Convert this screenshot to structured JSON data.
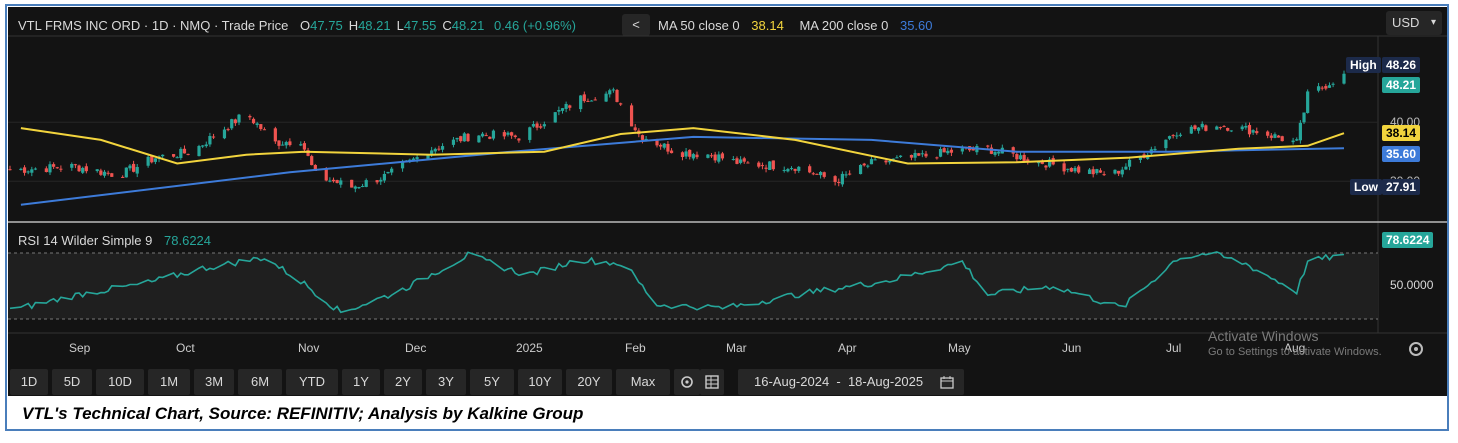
{
  "header": {
    "title": "VTL FRMS INC ORD · 1D · NMQ · Trade Price",
    "ohlc": [
      {
        "k": "O",
        "v": "47.75"
      },
      {
        "k": "H",
        "v": "48.21"
      },
      {
        "k": "L",
        "v": "47.55"
      },
      {
        "k": "C",
        "v": "48.21"
      }
    ],
    "change": "0.46 (+0.96%)",
    "ma50_label": "MA 50 close 0",
    "ma50_value": "38.14",
    "ma200_label": "MA 200 close 0",
    "ma200_value": "35.60",
    "currency": "USD",
    "collapse_glyph": "<"
  },
  "price_axis": {
    "ticks": [
      {
        "label": "40.00",
        "v": 40
      },
      {
        "label": "30.00",
        "v": 30
      }
    ],
    "tags": {
      "high_label": "High",
      "high_value": "48.26",
      "last": "48.21",
      "ma50": "38.14",
      "ma200": "35.60",
      "low_label": "Low",
      "low_value": "27.91"
    }
  },
  "rsi": {
    "label": "RSI 14 Wilder Simple 9",
    "value": "78.6224",
    "mid_tick": "50.0000"
  },
  "time_axis": {
    "labels": [
      "Sep",
      "Oct",
      "Nov",
      "Dec",
      "2025",
      "Feb",
      "Mar",
      "Apr",
      "May",
      "Jun",
      "Jul",
      "Aug"
    ]
  },
  "toolbar": {
    "ranges": [
      "1D",
      "5D",
      "10D",
      "1M",
      "3M",
      "6M",
      "YTD",
      "1Y",
      "2Y",
      "3Y",
      "5Y",
      "10Y",
      "20Y",
      "Max"
    ],
    "date_range": "16-Aug-2024  -  18-Aug-2025",
    "gear_icon": "gear-icon",
    "table_icon": "table-icon",
    "calendar_icon": "calendar-icon",
    "settings_icon": "settings-icon"
  },
  "watermark": {
    "line1": "Activate Windows",
    "line2": "Go to Settings to activate Windows."
  },
  "caption": "VTL's Technical Chart, Source: REFINITIV; Analysis by Kalkine Group",
  "colors": {
    "up": "#26a69a",
    "down": "#ef5350",
    "ma50": "#f2d43d",
    "ma200": "#3d7bd9",
    "rsi": "#26a69a",
    "frame": "#4a7ebb"
  },
  "chart_data": {
    "type": "candlestick",
    "title": "VTL FRMS INC ORD",
    "x_range": [
      "2024-08-16",
      "2025-08-18"
    ],
    "y_range": [
      27.91,
      48.26
    ],
    "price_close_path": [
      {
        "d": "2024-08-19",
        "c": 32.0
      },
      {
        "d": "2024-09-03",
        "c": 32.5
      },
      {
        "d": "2024-09-15",
        "c": 31.0
      },
      {
        "d": "2024-09-25",
        "c": 34.0
      },
      {
        "d": "2024-10-05",
        "c": 35.0
      },
      {
        "d": "2024-10-14",
        "c": 39.0
      },
      {
        "d": "2024-10-20",
        "c": 41.5
      },
      {
        "d": "2024-10-28",
        "c": 36.5
      },
      {
        "d": "2024-11-04",
        "c": 37.0
      },
      {
        "d": "2024-11-08",
        "c": 31.0
      },
      {
        "d": "2024-11-18",
        "c": 29.0
      },
      {
        "d": "2024-11-28",
        "c": 31.0
      },
      {
        "d": "2024-12-10",
        "c": 35.5
      },
      {
        "d": "2024-12-22",
        "c": 38.0
      },
      {
        "d": "2025-01-03",
        "c": 37.5
      },
      {
        "d": "2025-01-12",
        "c": 41.0
      },
      {
        "d": "2025-01-20",
        "c": 44.0
      },
      {
        "d": "2025-01-29",
        "c": 45.0
      },
      {
        "d": "2025-02-05",
        "c": 38.0
      },
      {
        "d": "2025-02-15",
        "c": 35.0
      },
      {
        "d": "2025-02-25",
        "c": 34.5
      },
      {
        "d": "2025-03-05",
        "c": 33.0
      },
      {
        "d": "2025-03-20",
        "c": 32.5
      },
      {
        "d": "2025-03-31",
        "c": 30.0
      },
      {
        "d": "2025-04-10",
        "c": 33.0
      },
      {
        "d": "2025-04-22",
        "c": 34.0
      },
      {
        "d": "2025-05-02",
        "c": 35.0
      },
      {
        "d": "2025-05-12",
        "c": 35.5
      },
      {
        "d": "2025-05-25",
        "c": 33.5
      },
      {
        "d": "2025-06-05",
        "c": 32.0
      },
      {
        "d": "2025-06-15",
        "c": 31.0
      },
      {
        "d": "2025-06-25",
        "c": 35.0
      },
      {
        "d": "2025-07-03",
        "c": 38.5
      },
      {
        "d": "2025-07-15",
        "c": 39.5
      },
      {
        "d": "2025-07-25",
        "c": 38.5
      },
      {
        "d": "2025-08-05",
        "c": 36.5
      },
      {
        "d": "2025-08-08",
        "c": 44.5
      },
      {
        "d": "2025-08-18",
        "c": 48.21
      }
    ],
    "ma50_path": [
      {
        "d": "2024-08-19",
        "v": 39.0
      },
      {
        "d": "2024-09-10",
        "v": 37.0
      },
      {
        "d": "2024-10-01",
        "v": 33.0
      },
      {
        "d": "2024-10-20",
        "v": 34.5
      },
      {
        "d": "2024-11-05",
        "v": 35.0
      },
      {
        "d": "2024-12-10",
        "v": 34.5
      },
      {
        "d": "2025-01-10",
        "v": 35.0
      },
      {
        "d": "2025-01-31",
        "v": 38.0
      },
      {
        "d": "2025-02-20",
        "v": 39.0
      },
      {
        "d": "2025-03-20",
        "v": 37.0
      },
      {
        "d": "2025-04-20",
        "v": 33.0
      },
      {
        "d": "2025-05-20",
        "v": 33.2
      },
      {
        "d": "2025-06-20",
        "v": 34.0
      },
      {
        "d": "2025-07-20",
        "v": 35.5
      },
      {
        "d": "2025-08-08",
        "v": 36.0
      },
      {
        "d": "2025-08-18",
        "v": 38.14
      }
    ],
    "ma200_path": [
      {
        "d": "2024-08-19",
        "v": 26.0
      },
      {
        "d": "2024-11-01",
        "v": 31.5
      },
      {
        "d": "2025-01-01",
        "v": 35.0
      },
      {
        "d": "2025-02-20",
        "v": 37.5
      },
      {
        "d": "2025-04-10",
        "v": 37.0
      },
      {
        "d": "2025-05-20",
        "v": 35.0
      },
      {
        "d": "2025-07-01",
        "v": 35.0
      },
      {
        "d": "2025-08-18",
        "v": 35.6
      }
    ],
    "rsi_path": [
      {
        "d": "2024-08-19",
        "v": 30
      },
      {
        "d": "2024-09-05",
        "v": 43
      },
      {
        "d": "2024-09-22",
        "v": 52
      },
      {
        "d": "2024-10-08",
        "v": 66
      },
      {
        "d": "2024-10-25",
        "v": 76
      },
      {
        "d": "2024-11-05",
        "v": 52
      },
      {
        "d": "2024-11-15",
        "v": 26
      },
      {
        "d": "2024-12-01",
        "v": 45
      },
      {
        "d": "2024-12-20",
        "v": 78
      },
      {
        "d": "2025-01-05",
        "v": 60
      },
      {
        "d": "2025-01-20",
        "v": 74
      },
      {
        "d": "2025-02-01",
        "v": 70
      },
      {
        "d": "2025-02-10",
        "v": 33
      },
      {
        "d": "2025-03-01",
        "v": 30
      },
      {
        "d": "2025-03-20",
        "v": 42
      },
      {
        "d": "2025-04-15",
        "v": 55
      },
      {
        "d": "2025-05-05",
        "v": 72
      },
      {
        "d": "2025-05-12",
        "v": 42
      },
      {
        "d": "2025-05-30",
        "v": 50
      },
      {
        "d": "2025-06-18",
        "v": 30
      },
      {
        "d": "2025-07-03",
        "v": 75
      },
      {
        "d": "2025-07-12",
        "v": 80
      },
      {
        "d": "2025-07-22",
        "v": 70
      },
      {
        "d": "2025-08-05",
        "v": 45
      },
      {
        "d": "2025-08-08",
        "v": 72
      },
      {
        "d": "2025-08-18",
        "v": 78.6224
      }
    ],
    "rsi_range": [
      20,
      80
    ]
  }
}
